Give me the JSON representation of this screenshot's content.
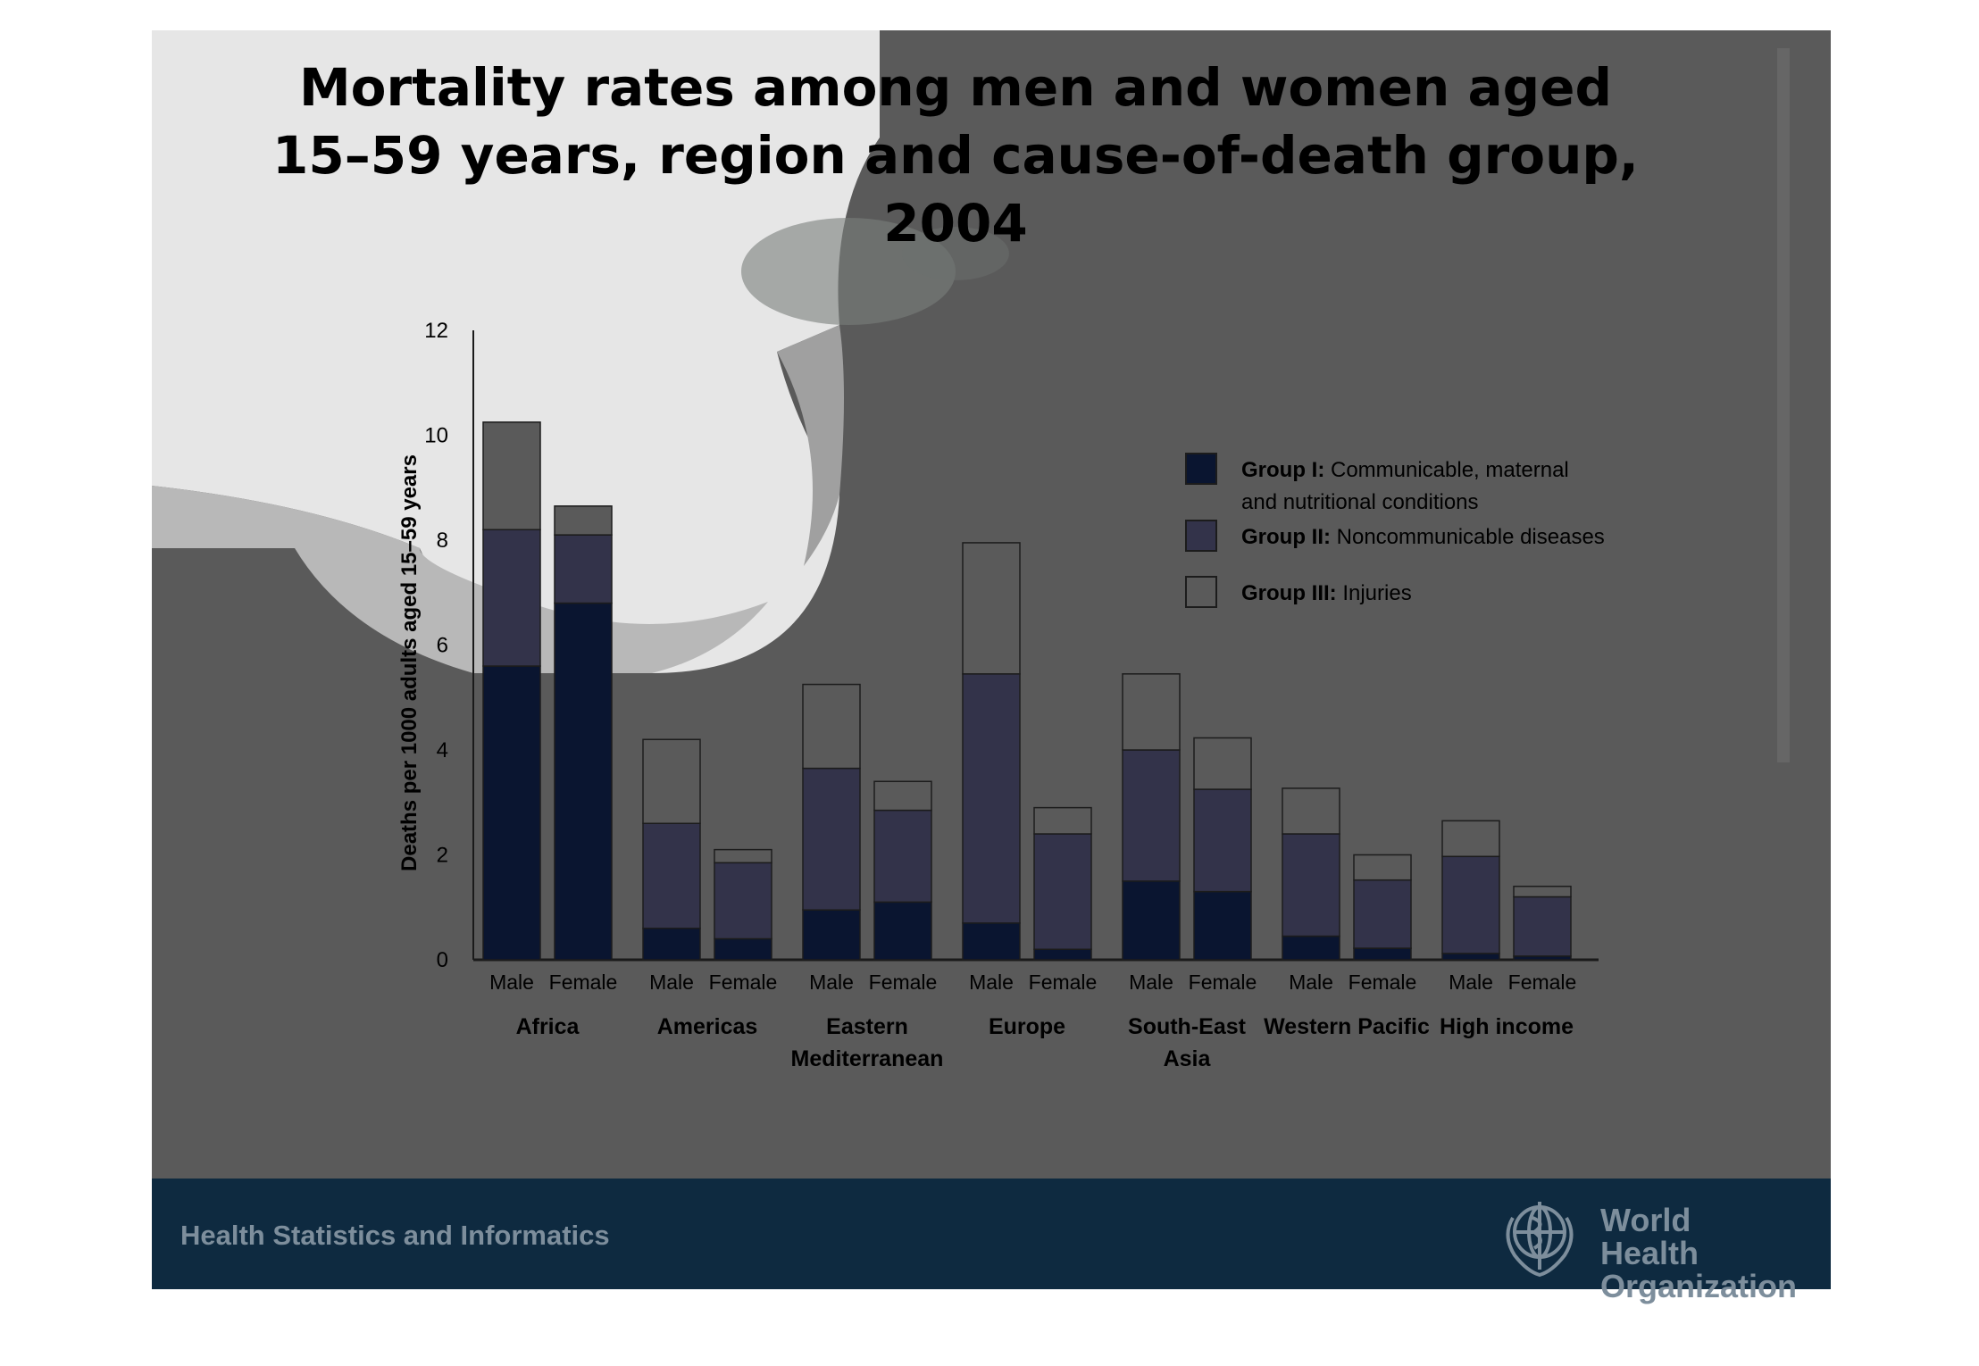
{
  "title": "Mortality rates among men and women aged\n15–59 years, region and cause-of-death group,\n2004",
  "footer": {
    "text": "Health Statistics and Informatics",
    "organization": "World Health\nOrganization",
    "logo_icon": "who-emblem-icon"
  },
  "colors": {
    "slide_background": "#5a5a5a",
    "footer_background": "#0e2a40",
    "group1": "#0a1530",
    "group2": "#33334a",
    "group3": "#5a5a5a",
    "overlay_light": "#c8c8c8"
  },
  "chart_data": {
    "type": "bar",
    "stacked": true,
    "ylabel": "Deaths per 1000 adults aged 15–59 years",
    "ylim": [
      0,
      12
    ],
    "yticks": [
      0,
      2,
      4,
      6,
      8,
      10,
      12
    ],
    "grid": false,
    "legend_position": "right",
    "groups": [
      "Africa",
      "Americas",
      "Eastern\nMediterranean",
      "Europe",
      "South-East\nAsia",
      "Western Pacific",
      "High income"
    ],
    "sex_labels": [
      "Male",
      "Female"
    ],
    "categories": [
      "Africa Male",
      "Africa Female",
      "Americas Male",
      "Americas Female",
      "Eastern Mediterranean Male",
      "Eastern Mediterranean Female",
      "Europe Male",
      "Europe Female",
      "South-East Asia Male",
      "South-East Asia Female",
      "Western Pacific Male",
      "Western Pacific Female",
      "High income Male",
      "High income Female"
    ],
    "series": [
      {
        "name": "Group I",
        "legend_bold": "Group I:",
        "legend_text": "Communicable, maternal\nand nutritional conditions",
        "values": [
          5.6,
          6.8,
          0.6,
          0.4,
          0.95,
          1.1,
          0.7,
          0.2,
          1.5,
          1.3,
          0.45,
          0.22,
          0.12,
          0.07
        ]
      },
      {
        "name": "Group II",
        "legend_bold": "Group II:",
        "legend_text": "Noncommunicable diseases",
        "values": [
          2.6,
          1.3,
          2.0,
          1.45,
          2.7,
          1.75,
          4.75,
          2.2,
          2.5,
          1.95,
          1.95,
          1.3,
          1.85,
          1.13
        ]
      },
      {
        "name": "Group III",
        "legend_bold": "Group III:",
        "legend_text": "Injuries",
        "values": [
          2.05,
          0.55,
          1.6,
          0.25,
          1.6,
          0.55,
          2.5,
          0.5,
          1.45,
          0.98,
          0.87,
          0.48,
          0.68,
          0.2
        ]
      }
    ]
  }
}
